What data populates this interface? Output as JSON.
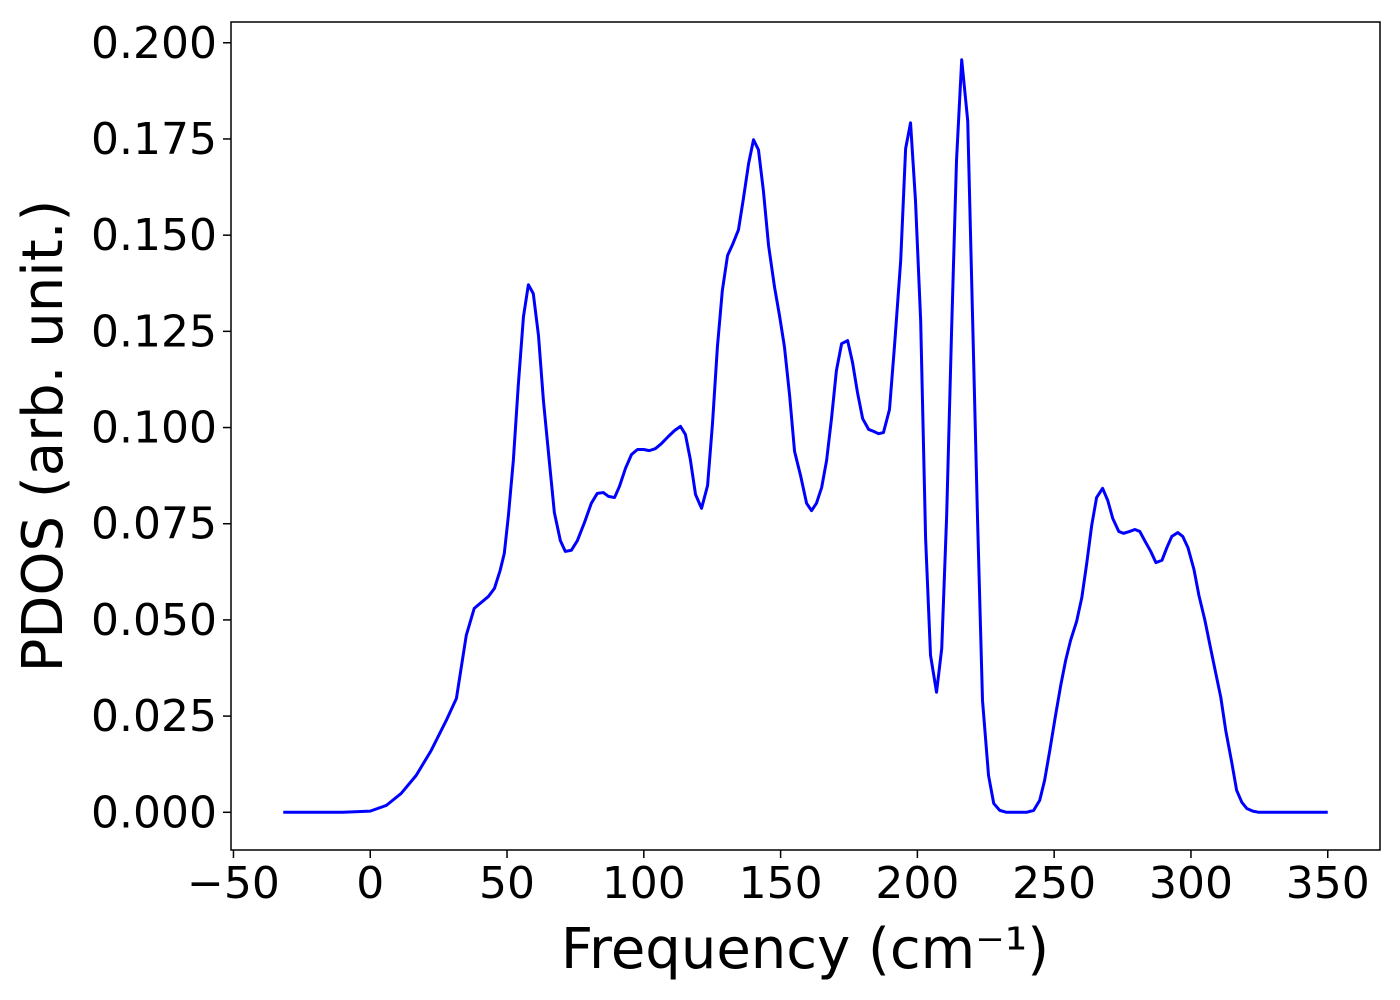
{
  "chart_data": {
    "type": "line",
    "xlabel": "Frequency (cm⁻¹)",
    "ylabel": "PDOS (arb. unit.)",
    "xlim": [
      -50.9,
      369.1
    ],
    "ylim": [
      -0.0098,
      0.2054
    ],
    "xticks": [
      {
        "value": -50,
        "label": "−50"
      },
      0,
      50,
      100,
      150,
      200,
      250,
      300,
      350
    ],
    "yticks": [
      {
        "value": 0,
        "label": "0.000"
      },
      {
        "value": 0.025,
        "label": "0.025"
      },
      {
        "value": 0.05,
        "label": "0.050"
      },
      {
        "value": 0.075,
        "label": "0.075"
      },
      {
        "value": 0.1,
        "label": "0.100"
      },
      {
        "value": 0.125,
        "label": "0.125"
      },
      {
        "value": 0.15,
        "label": "0.150"
      },
      {
        "value": 0.175,
        "label": "0.175"
      },
      {
        "value": 0.2,
        "label": "0.200"
      }
    ],
    "grid": false,
    "x": [
      -31.8,
      -10,
      0,
      5.9,
      11.3,
      16.8,
      22.3,
      27.8,
      31.5,
      35.1,
      38.0,
      43.2,
      45.4,
      47.5,
      49.0,
      50.5,
      52.3,
      54.1,
      56.0,
      57.8,
      59.6,
      61.5,
      63.3,
      65.5,
      67.3,
      69.5,
      71.3,
      73.5,
      75.7,
      78.3,
      80.8,
      83.0,
      85.2,
      87.1,
      89.3,
      91.1,
      93.3,
      95.5,
      97.7,
      99.9,
      102.0,
      104.2,
      106.4,
      109.0,
      111.2,
      113.4,
      115.2,
      117.0,
      118.9,
      121.1,
      123.3,
      125.1,
      126.9,
      128.7,
      130.6,
      132.4,
      134.6,
      136.4,
      138.3,
      140.1,
      141.9,
      143.7,
      145.6,
      147.8,
      149.6,
      151.4,
      153.3,
      155.1,
      157.3,
      159.5,
      161.3,
      163.1,
      165.0,
      166.8,
      168.6,
      170.4,
      172.3,
      174.5,
      176.3,
      178.1,
      180.0,
      182.2,
      184.0,
      185.8,
      187.6,
      189.8,
      191.7,
      193.9,
      195.7,
      197.5,
      199.3,
      201.2,
      203.0,
      204.8,
      207.0,
      208.9,
      210.7,
      212.5,
      214.3,
      216.2,
      218.4,
      220.2,
      222.0,
      223.8,
      226.0,
      227.9,
      230.1,
      232.6,
      239.9,
      242.5,
      244.7,
      246.5,
      248.4,
      250.5,
      252.4,
      254.2,
      256.0,
      258.2,
      260.1,
      261.9,
      263.7,
      265.5,
      267.7,
      269.6,
      271.4,
      273.6,
      275.4,
      277.6,
      279.5,
      281.3,
      283.1,
      285.3,
      287.2,
      289.4,
      291.2,
      293.0,
      295.2,
      297.0,
      298.9,
      301.1,
      302.9,
      305.1,
      306.9,
      308.7,
      310.9,
      312.7,
      314.9,
      316.7,
      318.6,
      320.4,
      322.6,
      324.8,
      350.0
    ],
    "series": [
      {
        "name": "PDOS",
        "color": "#0000ff",
        "values": [
          0,
          0,
          0.0003,
          0.0018,
          0.0049,
          0.0096,
          0.0161,
          0.0239,
          0.0296,
          0.046,
          0.053,
          0.0561,
          0.0582,
          0.0629,
          0.0673,
          0.0771,
          0.0914,
          0.1109,
          0.1288,
          0.1371,
          0.1348,
          0.1239,
          0.107,
          0.0909,
          0.0779,
          0.0706,
          0.0678,
          0.0681,
          0.0706,
          0.0753,
          0.0803,
          0.0829,
          0.0831,
          0.0821,
          0.0818,
          0.0847,
          0.0894,
          0.093,
          0.0943,
          0.0943,
          0.094,
          0.0945,
          0.0958,
          0.0977,
          0.0992,
          0.1003,
          0.0982,
          0.0917,
          0.0826,
          0.079,
          0.0849,
          0.101,
          0.121,
          0.1356,
          0.1447,
          0.1475,
          0.1514,
          0.1595,
          0.1686,
          0.1748,
          0.1722,
          0.1616,
          0.1473,
          0.1364,
          0.1291,
          0.121,
          0.1083,
          0.0938,
          0.0875,
          0.0803,
          0.0784,
          0.0803,
          0.0844,
          0.0914,
          0.1023,
          0.1148,
          0.1218,
          0.1226,
          0.1169,
          0.1091,
          0.1023,
          0.0995,
          0.099,
          0.0984,
          0.0987,
          0.1047,
          0.1218,
          0.1434,
          0.1725,
          0.1792,
          0.159,
          0.1278,
          0.0712,
          0.0408,
          0.0312,
          0.0426,
          0.0771,
          0.1252,
          0.1694,
          0.1956,
          0.1797,
          0.1278,
          0.0758,
          0.0291,
          0.0096,
          0.0023,
          0.0005,
          0,
          0,
          0.0005,
          0.0031,
          0.0083,
          0.0161,
          0.0252,
          0.033,
          0.0395,
          0.0447,
          0.0496,
          0.0558,
          0.0647,
          0.0745,
          0.0818,
          0.0842,
          0.081,
          0.0764,
          0.073,
          0.0725,
          0.073,
          0.0735,
          0.073,
          0.0706,
          0.0678,
          0.0649,
          0.0655,
          0.0688,
          0.0717,
          0.0727,
          0.0717,
          0.0688,
          0.0631,
          0.0564,
          0.0499,
          0.0436,
          0.0374,
          0.0299,
          0.0213,
          0.013,
          0.0057,
          0.0026,
          0.001,
          0.0003,
          0,
          0
        ]
      }
    ]
  }
}
